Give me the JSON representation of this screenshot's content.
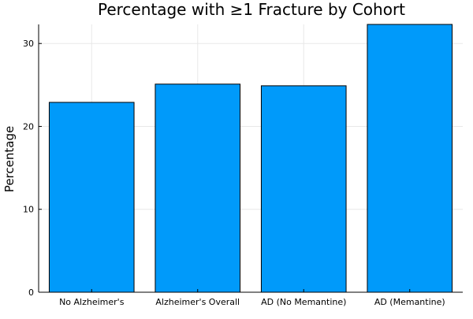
{
  "chart_data": {
    "type": "bar",
    "title": "Percentage with ≥1 Fracture by Cohort",
    "xlabel": "",
    "ylabel": "Percentage",
    "categories": [
      "No Alzheimer's",
      "Alzheimer's Overall",
      "AD (No Memantine)",
      "AD (Memantine)"
    ],
    "values": [
      22.9,
      25.1,
      24.9,
      32.3
    ],
    "ylim": [
      0,
      32.3
    ],
    "yticks": [
      0,
      10,
      20,
      30
    ],
    "grid": true,
    "legend": "none",
    "bar_color": "#009AFA"
  }
}
